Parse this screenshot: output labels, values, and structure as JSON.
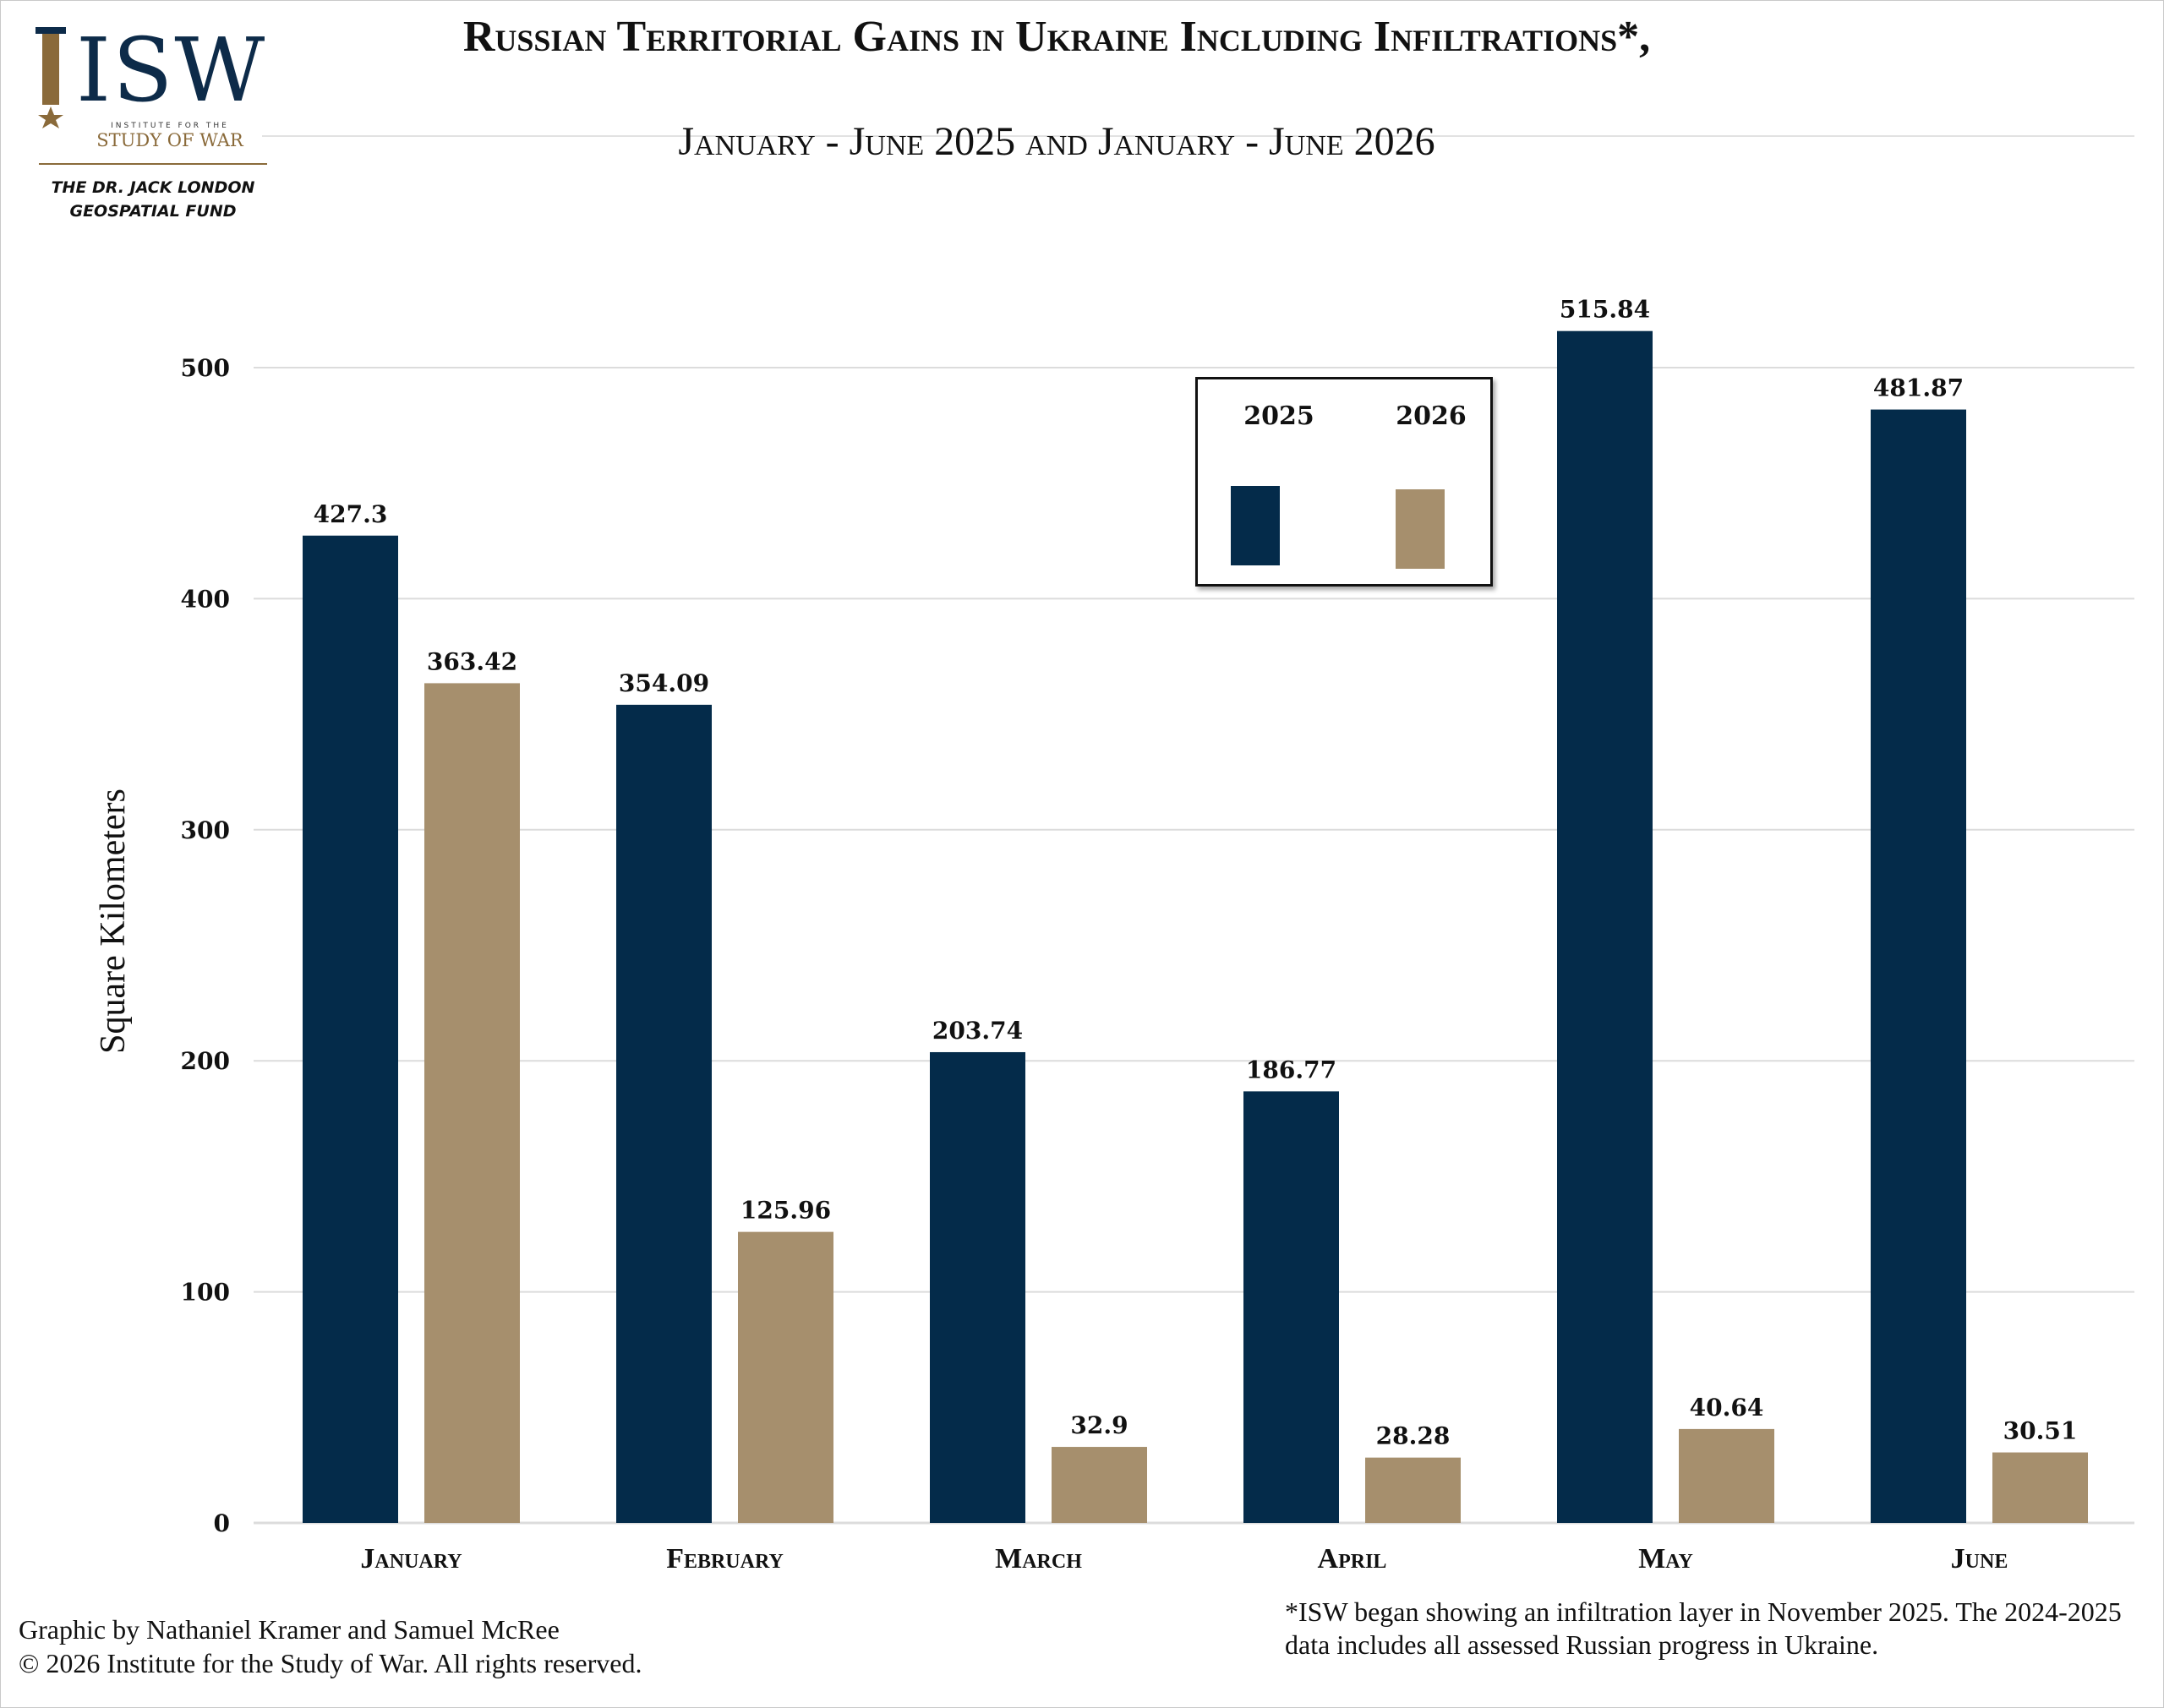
{
  "logo": {
    "letters": "ISW",
    "institute": "INSTITUTE FOR THE",
    "study": "STUDY OF WAR",
    "fund_line1": "THE DR. JACK LONDON",
    "fund_line2": "GEOSPATIAL FUND"
  },
  "header": {
    "title": "Russian Territorial Gains in Ukraine Including Infiltrations*,",
    "subtitle": "January - June 2025 and January - June 2026"
  },
  "footer": {
    "credit_line1": "Graphic by Nathaniel Kramer and Samuel McRee",
    "credit_line2": "© 2026 Institute for the Study of War. All rights reserved.",
    "note": "*ISW began showing an infiltration layer in November 2025.  The 2024-2025 data includes all assessed Russian progress in Ukraine."
  },
  "colors": {
    "series_2025": "#042b4a",
    "series_2026": "#a68f6d",
    "grid": "#dcdcdc"
  },
  "chart_data": {
    "type": "bar",
    "title": "Russian Territorial Gains in Ukraine Including Infiltrations*, January - June 2025 and January - June 2026",
    "categories": [
      "January",
      "February",
      "March",
      "April",
      "May",
      "June"
    ],
    "series": [
      {
        "name": "2025",
        "values": [
          427.3,
          354.09,
          203.74,
          186.77,
          515.84,
          481.87
        ]
      },
      {
        "name": "2026",
        "values": [
          363.42,
          125.96,
          32.9,
          28.28,
          40.64,
          30.51
        ]
      }
    ],
    "ylabel": "Square Kilometers",
    "xlabel": "",
    "ylim": [
      0,
      500
    ],
    "yticks": [
      0,
      100,
      200,
      300,
      400,
      500
    ],
    "grid": true,
    "legend": "top-center, boxed"
  }
}
